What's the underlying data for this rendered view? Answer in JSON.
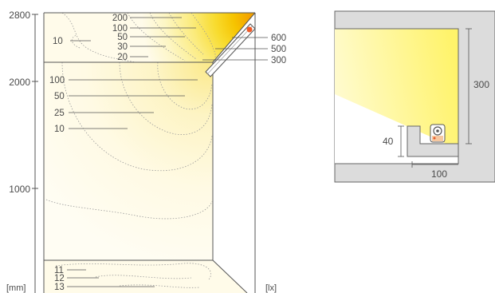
{
  "scale_axis": {
    "ticks": [
      "2800",
      "2000",
      "1000"
    ],
    "unit_left": "[mm]",
    "unit_right": "[lx]"
  },
  "ceiling_labels_left": [
    "200",
    "100",
    "50",
    "30",
    "20"
  ],
  "ceiling_labels_right": [
    "600",
    "500",
    "300"
  ],
  "ceiling_side_label": "10",
  "wall_labels": [
    "100",
    "50",
    "25",
    "10"
  ],
  "floor_labels": [
    "11",
    "12",
    "13"
  ],
  "detail": {
    "height_label": "300",
    "cove_height_label": "40",
    "cove_depth_label": "100"
  },
  "colors": {
    "background": "#ffffff",
    "line": "#555555",
    "text": "#4a4a4a",
    "hot_orange": "#f5a200",
    "warm_yellow": "#f7d520",
    "pale_yellow": "#fdf6b8",
    "cream": "#fffbea",
    "detail_grey": "#dcdcdc",
    "detail_light": "#fff9a0"
  }
}
